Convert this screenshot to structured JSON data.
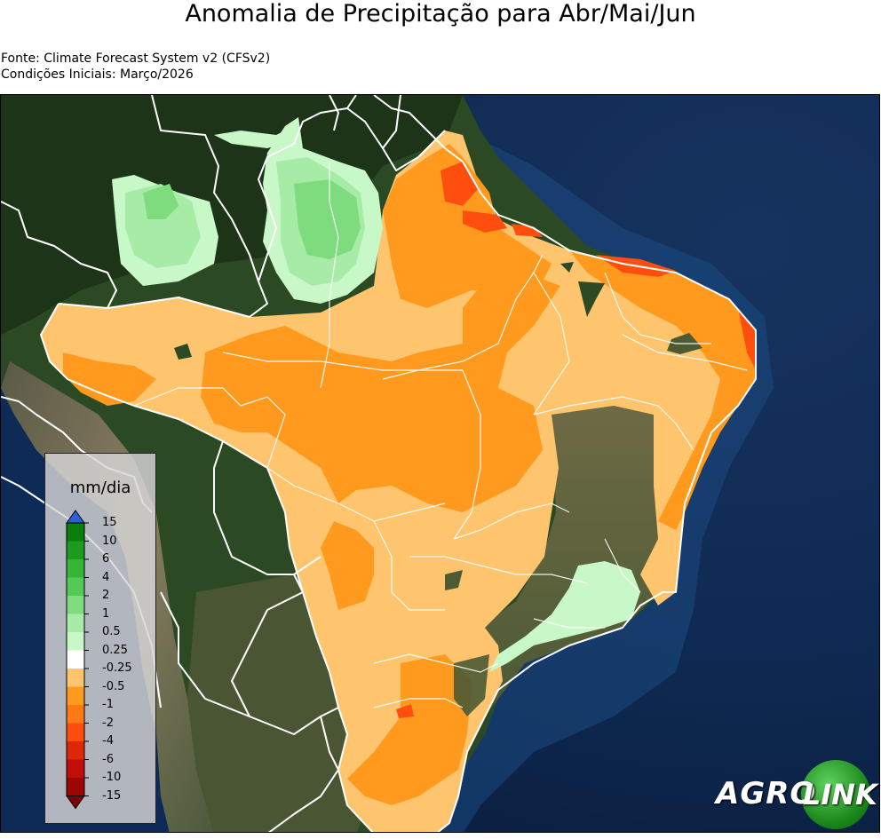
{
  "title": "Anomalia de Precipitação para Abr/Mai/Jun",
  "source_line": "Fonte: Climate Forecast System v2 (CFSv2)",
  "initial_conditions_line": "Condições Iniciais: Março/2026",
  "legend": {
    "unit": "mm/dia",
    "ticks": [
      "15",
      "10",
      "6",
      "4",
      "2",
      "1",
      "0.5",
      "0.25",
      "-0.25",
      "-0.5",
      "-1",
      "-2",
      "-4",
      "-6",
      "-10",
      "-15"
    ],
    "colors": [
      "#0a7d0a",
      "#1e9a1e",
      "#37b537",
      "#55c955",
      "#7edc7e",
      "#a6eca6",
      "#c8f7c8",
      "#ffffff",
      "#ffc56e",
      "#ff9a1e",
      "#ff7a14",
      "#ff4e0e",
      "#e02608",
      "#c00e08",
      "#9e0606"
    ],
    "over_color": "#2c5fd6",
    "under_color": "#7a0404"
  },
  "colors": {
    "ocean": "#0d2a55",
    "land_dark": "#26401f",
    "light_orange": "#ffc56e",
    "orange": "#ff9a1e",
    "red_orange": "#ff4e0e",
    "light_green": "#c8f7c8",
    "green": "#7edc7e",
    "border": "#ffffff"
  },
  "logo": {
    "part1": "AGRO",
    "part2": "LINK"
  }
}
